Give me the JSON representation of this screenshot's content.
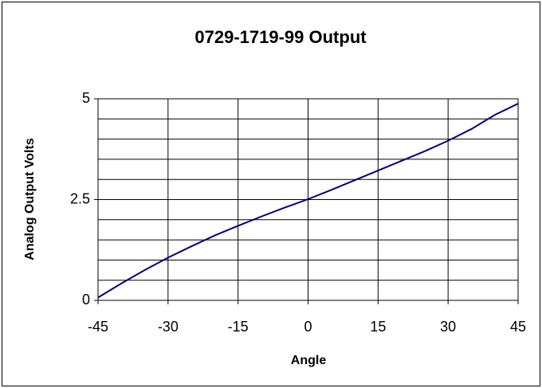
{
  "chart_data": {
    "type": "line",
    "title": "0729-1719-99 Output",
    "x_label": "Angle",
    "y_label": "Analog Output Volts",
    "x": [
      -45,
      -40,
      -35,
      -30,
      -25,
      -20,
      -15,
      -10,
      -5,
      0,
      5,
      10,
      15,
      20,
      25,
      30,
      35,
      40,
      45
    ],
    "series": [
      {
        "name": "Output",
        "color": "#000080",
        "values": [
          0.07,
          0.42,
          0.75,
          1.06,
          1.34,
          1.61,
          1.85,
          2.08,
          2.3,
          2.51,
          2.74,
          2.98,
          3.22,
          3.46,
          3.7,
          3.96,
          4.25,
          4.6,
          4.88
        ]
      }
    ],
    "xlim": [
      -45,
      45
    ],
    "xticks": [
      -45,
      -30,
      -15,
      0,
      15,
      30,
      45
    ],
    "ylim": [
      0,
      5
    ],
    "yticks": [
      0,
      2.5,
      5
    ],
    "y_minor_grid": [
      0.5,
      1,
      1.5,
      2,
      3,
      3.5,
      4,
      4.5
    ],
    "grid": true
  }
}
